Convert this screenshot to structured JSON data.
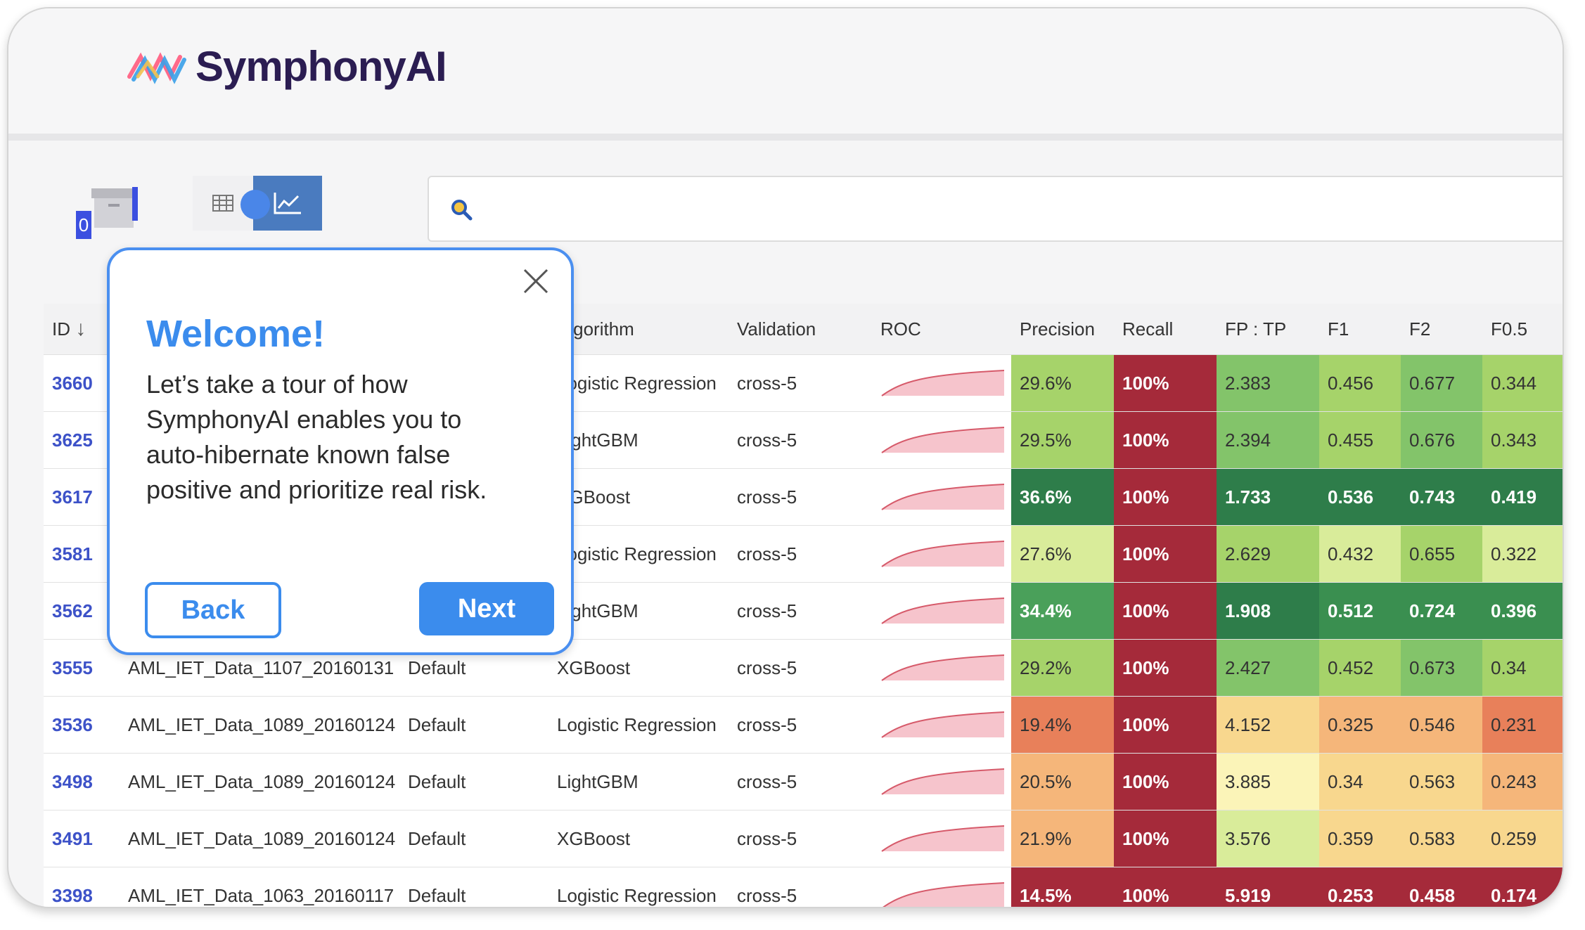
{
  "brand": {
    "name": "SymphonyAI"
  },
  "toolbar": {
    "archive_badge": "0"
  },
  "table": {
    "headers": {
      "id": "ID",
      "algorithm": "Algorithm",
      "validation": "Validation",
      "roc": "ROC",
      "precision": "Precision",
      "recall": "Recall",
      "fptp": "FP : TP",
      "f1": "F1",
      "f2": "F2",
      "f05": "F0.5"
    },
    "rows": [
      {
        "id": "3660",
        "dataset": "",
        "params": "",
        "algorithm": "Logistic Regression",
        "validation": "cross-5",
        "precision": "29.6%",
        "recall": "100%",
        "fptp": "2.383",
        "f1": "0.456",
        "f2": "0.677",
        "f05": "0.344",
        "colors": {
          "precision": "#a6d36a",
          "recall": "#a52a3a",
          "fptp": "#83c46a",
          "f1": "#a6d36a",
          "f2": "#83c46a",
          "f05": "#a6d36a"
        }
      },
      {
        "id": "3625",
        "dataset": "",
        "params": "",
        "algorithm": "LightGBM",
        "validation": "cross-5",
        "precision": "29.5%",
        "recall": "100%",
        "fptp": "2.394",
        "f1": "0.455",
        "f2": "0.676",
        "f05": "0.343",
        "colors": {
          "precision": "#a6d36a",
          "recall": "#a52a3a",
          "fptp": "#83c46a",
          "f1": "#a6d36a",
          "f2": "#83c46a",
          "f05": "#a6d36a"
        }
      },
      {
        "id": "3617",
        "dataset": "",
        "params": "",
        "algorithm": "XGBoost",
        "validation": "cross-5",
        "precision": "36.6%",
        "recall": "100%",
        "fptp": "1.733",
        "f1": "0.536",
        "f2": "0.743",
        "f05": "0.419",
        "colors": {
          "precision": "#2e7d4a",
          "recall": "#a52a3a",
          "fptp": "#2e7d4a",
          "f1": "#2e7d4a",
          "f2": "#2e7d4a",
          "f05": "#2e7d4a"
        },
        "bold": true
      },
      {
        "id": "3581",
        "dataset": "",
        "params": "",
        "algorithm": "Logistic Regression",
        "validation": "cross-5",
        "precision": "27.6%",
        "recall": "100%",
        "fptp": "2.629",
        "f1": "0.432",
        "f2": "0.655",
        "f05": "0.322",
        "colors": {
          "precision": "#d9ec9a",
          "recall": "#a52a3a",
          "fptp": "#a6d36a",
          "f1": "#d9ec9a",
          "f2": "#a6d36a",
          "f05": "#d9ec9a"
        }
      },
      {
        "id": "3562",
        "dataset": "",
        "params": "",
        "algorithm": "LightGBM",
        "validation": "cross-5",
        "precision": "34.4%",
        "recall": "100%",
        "fptp": "1.908",
        "f1": "0.512",
        "f2": "0.724",
        "f05": "0.396",
        "colors": {
          "precision": "#4aa05a",
          "recall": "#a52a3a",
          "fptp": "#2e7d4a",
          "f1": "#3a8f50",
          "f2": "#3a8f50",
          "f05": "#3a8f50"
        }
      },
      {
        "id": "3555",
        "dataset": "AML_IET_Data_1107_20160131",
        "params": "Default",
        "algorithm": "XGBoost",
        "validation": "cross-5",
        "precision": "29.2%",
        "recall": "100%",
        "fptp": "2.427",
        "f1": "0.452",
        "f2": "0.673",
        "f05": "0.34",
        "colors": {
          "precision": "#a6d36a",
          "recall": "#a52a3a",
          "fptp": "#83c46a",
          "f1": "#a6d36a",
          "f2": "#83c46a",
          "f05": "#a6d36a"
        }
      },
      {
        "id": "3536",
        "dataset": "AML_IET_Data_1089_20160124",
        "params": "Default",
        "algorithm": "Logistic Regression",
        "validation": "cross-5",
        "precision": "19.4%",
        "recall": "100%",
        "fptp": "4.152",
        "f1": "0.325",
        "f2": "0.546",
        "f05": "0.231",
        "colors": {
          "precision": "#e8805a",
          "recall": "#a52a3a",
          "fptp": "#f8d78e",
          "f1": "#f5b67a",
          "f2": "#f5b67a",
          "f05": "#e8805a"
        }
      },
      {
        "id": "3498",
        "dataset": "AML_IET_Data_1089_20160124",
        "params": "Default",
        "algorithm": "LightGBM",
        "validation": "cross-5",
        "precision": "20.5%",
        "recall": "100%",
        "fptp": "3.885",
        "f1": "0.34",
        "f2": "0.563",
        "f05": "0.243",
        "colors": {
          "precision": "#f5b67a",
          "recall": "#a52a3a",
          "fptp": "#fbf4b8",
          "f1": "#f8d78e",
          "f2": "#f8d78e",
          "f05": "#f5b67a"
        }
      },
      {
        "id": "3491",
        "dataset": "AML_IET_Data_1089_20160124",
        "params": "Default",
        "algorithm": "XGBoost",
        "validation": "cross-5",
        "precision": "21.9%",
        "recall": "100%",
        "fptp": "3.576",
        "f1": "0.359",
        "f2": "0.583",
        "f05": "0.259",
        "colors": {
          "precision": "#f5b67a",
          "recall": "#a52a3a",
          "fptp": "#d9ec9a",
          "f1": "#f8d78e",
          "f2": "#f8d78e",
          "f05": "#f8d78e"
        }
      },
      {
        "id": "3398",
        "dataset": "AML_IET_Data_1063_20160117",
        "params": "Default",
        "algorithm": "Logistic Regression",
        "validation": "cross-5",
        "precision": "14.5%",
        "recall": "100%",
        "fptp": "5.919",
        "f1": "0.253",
        "f2": "0.458",
        "f05": "0.174",
        "colors": {
          "precision": "#a52a3a",
          "recall": "#a52a3a",
          "fptp": "#a52a3a",
          "f1": "#a52a3a",
          "f2": "#a52a3a",
          "f05": "#a52a3a"
        },
        "bold": true
      }
    ]
  },
  "tour": {
    "title": "Welcome!",
    "body": "Let’s take a tour of how SymphonyAI enables you to auto-hibernate known false positive and prioritize real risk.",
    "back_label": "Back",
    "next_label": "Next"
  }
}
